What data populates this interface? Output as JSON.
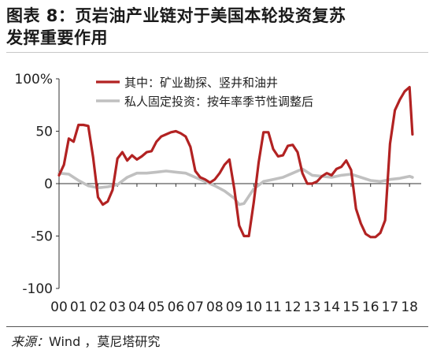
{
  "title": {
    "line1": "图表 8：页岩油产业链对于美国本轮投资复苏",
    "line2": "发挥重要作用"
  },
  "source": {
    "label": "来源：",
    "text": "Wind ，莫尼塔研究"
  },
  "chart_data": {
    "type": "line",
    "title": "",
    "xlabel": "",
    "ylabel": "",
    "ylim": [
      -100,
      100
    ],
    "yticks": [
      {
        "value": 100,
        "label": "100%"
      },
      {
        "value": 50,
        "label": "50"
      },
      {
        "value": 0,
        "label": "0"
      },
      {
        "value": -50,
        "label": "-50"
      },
      {
        "value": -100,
        "label": "-100"
      }
    ],
    "xlim": [
      2000,
      2018.6
    ],
    "xticks": [
      {
        "value": 2000,
        "label": "00"
      },
      {
        "value": 2001,
        "label": "01"
      },
      {
        "value": 2002,
        "label": "02"
      },
      {
        "value": 2003,
        "label": "03"
      },
      {
        "value": 2004,
        "label": "04"
      },
      {
        "value": 2005,
        "label": "05"
      },
      {
        "value": 2006,
        "label": "06"
      },
      {
        "value": 2007,
        "label": "07"
      },
      {
        "value": 2008,
        "label": "08"
      },
      {
        "value": 2009,
        "label": "09"
      },
      {
        "value": 2010,
        "label": "10"
      },
      {
        "value": 2011,
        "label": "11"
      },
      {
        "value": 2012,
        "label": "12"
      },
      {
        "value": 2013,
        "label": "13"
      },
      {
        "value": 2014,
        "label": "14"
      },
      {
        "value": 2015,
        "label": "15"
      },
      {
        "value": 2016,
        "label": "16"
      },
      {
        "value": 2017,
        "label": "17"
      },
      {
        "value": 2018,
        "label": "18"
      }
    ],
    "grid": false,
    "legend": "top-right",
    "series": [
      {
        "name": "其中：矿业勘探、竖井和油井",
        "color": "#b22222",
        "x": [
          2000,
          2000.25,
          2000.5,
          2000.75,
          2001,
          2001.25,
          2001.5,
          2001.75,
          2002,
          2002.25,
          2002.5,
          2002.75,
          2003,
          2003.25,
          2003.5,
          2003.75,
          2004,
          2004.25,
          2004.5,
          2004.75,
          2005,
          2005.25,
          2005.5,
          2005.75,
          2006,
          2006.25,
          2006.5,
          2006.75,
          2007,
          2007.25,
          2007.5,
          2007.75,
          2008,
          2008.25,
          2008.5,
          2008.75,
          2009,
          2009.25,
          2009.5,
          2009.75,
          2010,
          2010.25,
          2010.5,
          2010.75,
          2011,
          2011.25,
          2011.5,
          2011.75,
          2012,
          2012.25,
          2012.5,
          2012.75,
          2013,
          2013.25,
          2013.5,
          2013.75,
          2014,
          2014.25,
          2014.5,
          2014.75,
          2015,
          2015.25,
          2015.5,
          2015.75,
          2016,
          2016.25,
          2016.5,
          2016.75,
          2017,
          2017.25,
          2017.5,
          2017.75,
          2018,
          2018.15
        ],
        "values": [
          8,
          18,
          43,
          40,
          56,
          56,
          55,
          25,
          -13,
          -20,
          -17,
          -6,
          24,
          30,
          22,
          27,
          23,
          26,
          30,
          31,
          40,
          45,
          47,
          49,
          50,
          48,
          45,
          35,
          12,
          6,
          4,
          1,
          4,
          10,
          18,
          23,
          -5,
          -40,
          -50,
          -50,
          -18,
          20,
          49,
          49,
          33,
          26,
          27,
          36,
          37,
          30,
          10,
          0,
          0,
          2,
          7,
          10,
          8,
          14,
          16,
          22,
          13,
          -24,
          -38,
          -48,
          -51,
          -51,
          -47,
          -35,
          38,
          70,
          80,
          88,
          92,
          47
        ]
      },
      {
        "name": "私人固定投资：按年率季节性调整后",
        "color": "#c0c0c0",
        "x": [
          2000,
          2000.5,
          2001,
          2001.5,
          2002,
          2002.5,
          2003,
          2003.5,
          2004,
          2004.5,
          2005,
          2005.5,
          2006,
          2006.5,
          2007,
          2007.5,
          2008,
          2008.5,
          2009,
          2009.25,
          2009.5,
          2009.75,
          2010,
          2010.5,
          2011,
          2011.5,
          2012,
          2012.5,
          2013,
          2013.5,
          2014,
          2014.5,
          2015,
          2015.5,
          2016,
          2016.5,
          2017,
          2017.5,
          2018,
          2018.15
        ],
        "values": [
          10,
          9,
          3,
          -2,
          -4,
          -3,
          -1,
          6,
          10,
          10,
          11,
          12,
          11,
          10,
          6,
          2,
          -2,
          -7,
          -14,
          -20,
          -19,
          -12,
          -5,
          2,
          4,
          6,
          10,
          14,
          8,
          7,
          6,
          8,
          9,
          6,
          3,
          2,
          4,
          5,
          7,
          6
        ]
      }
    ]
  }
}
